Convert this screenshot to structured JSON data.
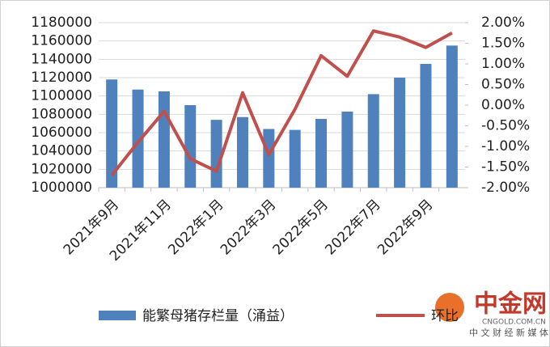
{
  "chart_data": {
    "type": "bar-line",
    "categories": [
      "2021年9月",
      null,
      "2021年11月",
      null,
      "2022年1月",
      null,
      "2022年3月",
      null,
      "2022年5月",
      null,
      "2022年7月",
      null,
      "2022年9月",
      null
    ],
    "series": [
      {
        "name": "能繁母猪存栏量（涌益）",
        "type": "bar",
        "color": "#4f81bd",
        "values": [
          1118000,
          1107000,
          1105000,
          1090000,
          1074000,
          1077000,
          1064000,
          1063000,
          1075000,
          1083000,
          1102000,
          1120000,
          1135000,
          1155000
        ]
      },
      {
        "name": "环比",
        "type": "line",
        "axis": "y2",
        "color": "#c0504d",
        "values": [
          -1.7,
          -0.9,
          -0.15,
          -1.3,
          -1.6,
          0.3,
          -1.2,
          -0.1,
          1.2,
          0.7,
          1.8,
          1.65,
          1.4,
          1.75
        ]
      }
    ],
    "ylim": [
      1000000,
      1180000
    ],
    "yticks": [
      1000000,
      1020000,
      1040000,
      1060000,
      1080000,
      1100000,
      1120000,
      1140000,
      1160000,
      1180000
    ],
    "y2lim": [
      -2,
      2
    ],
    "y2ticks": [
      {
        "value": -2,
        "label": "-2.00%"
      },
      {
        "value": -1.5,
        "label": "-1.50%"
      },
      {
        "value": -1,
        "label": "-1.00%"
      },
      {
        "value": -0.5,
        "label": "-0.50%"
      },
      {
        "value": 0,
        "label": "0.00%"
      },
      {
        "value": 0.5,
        "label": "0.50%"
      },
      {
        "value": 1,
        "label": "1.00%"
      },
      {
        "value": 1.5,
        "label": "1.50%"
      },
      {
        "value": 2,
        "label": "2.00%"
      }
    ],
    "grid": true
  },
  "watermark": {
    "name": "中金网",
    "url": "CNGOLD.COM.CN",
    "tagline": "中 文 财 经 新 媒 体"
  }
}
